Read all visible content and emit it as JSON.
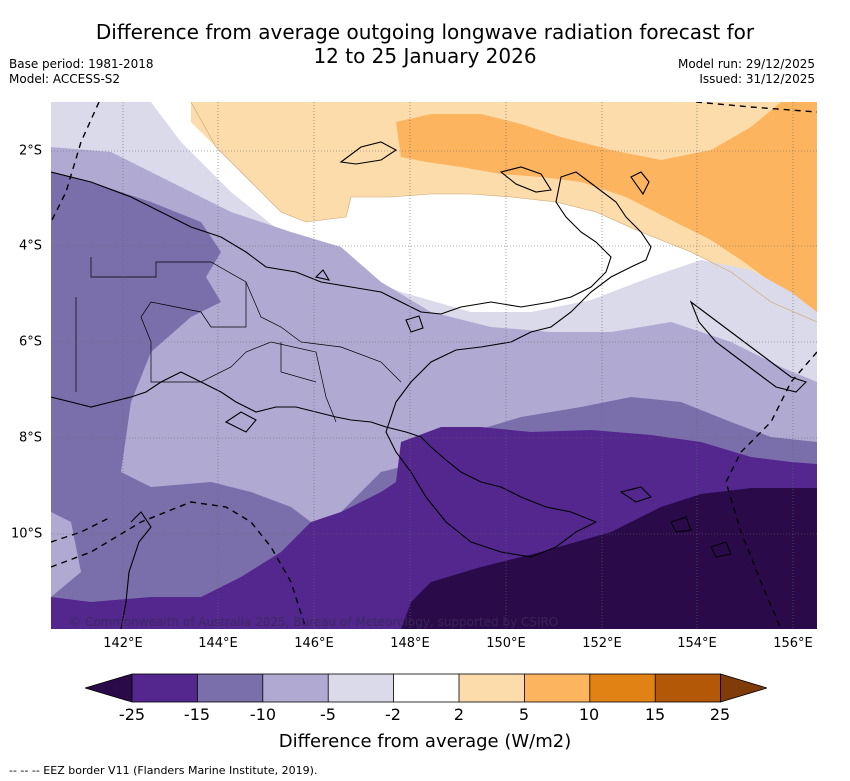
{
  "title_line1": "Difference from average outgoing longwave radiation forecast for",
  "title_line2": "12 to 25 January 2026",
  "meta_left": {
    "base_period": "Base period: 1981-2018",
    "model": "Model: ACCESS-S2"
  },
  "meta_right": {
    "model_run": "Model run: 29/12/2025",
    "issued": "Issued: 31/12/2025"
  },
  "lon_labels": [
    "142°E",
    "144°E",
    "146°E",
    "148°E",
    "150°E",
    "152°E",
    "154°E",
    "156°E"
  ],
  "lat_labels": [
    "2°S",
    "4°S",
    "6°S",
    "8°S",
    "10°S"
  ],
  "copyright": "© Commonwealth of Australia 2025, Bureau of Meteorology, supported by CSIRO",
  "colorbar": {
    "ticks": [
      "-25",
      "-15",
      "-10",
      "-5",
      "-2",
      "2",
      "5",
      "10",
      "15",
      "25"
    ],
    "colors": {
      "lt_minus25": "#2b0a4a",
      "minus25_minus15": "#54278f",
      "minus15_minus10": "#7b6fab",
      "minus10_minus5": "#b0aad3",
      "minus5_minus2": "#dadaea",
      "minus2_2": "#ffffff",
      "p2_p5": "#fddcac",
      "p5_p10": "#fdb45f",
      "p10_p15": "#e08214",
      "p15_p25": "#b35806",
      "gt_25": "#7f3b08"
    },
    "title": "Difference from average (W/m2)"
  },
  "eez_legend": "--  --  -- EEZ border V11 (Flanders Marine Institute, 2019)."
}
